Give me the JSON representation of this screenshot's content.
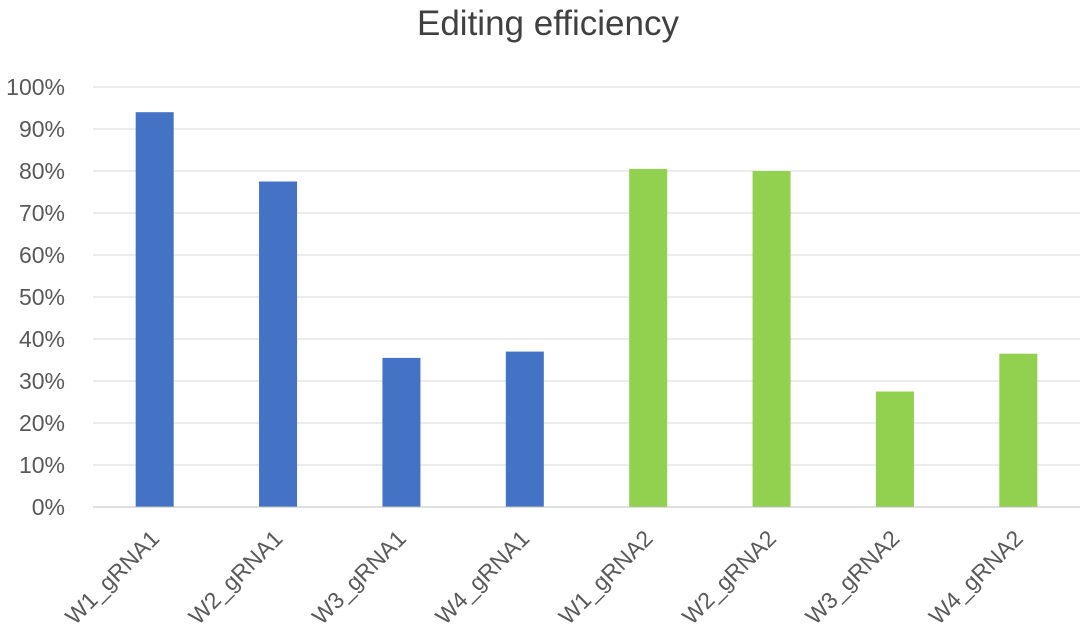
{
  "chart_data": {
    "type": "bar",
    "title": "Editing efficiency",
    "xlabel": "",
    "ylabel": "",
    "categories": [
      "W1_gRNA1",
      "W2_gRNA1",
      "W3_gRNA1",
      "W4_gRNA1",
      "W1_gRNA2",
      "W2_gRNA2",
      "W3_gRNA2",
      "W4_gRNA2"
    ],
    "values": [
      94,
      77.5,
      35.5,
      37,
      80.5,
      80,
      27.5,
      36.5
    ],
    "value_unit": "%",
    "ylim": [
      0,
      100
    ],
    "yticks": [
      "0%",
      "10%",
      "20%",
      "30%",
      "40%",
      "50%",
      "60%",
      "70%",
      "80%",
      "90%",
      "100%"
    ],
    "grid": true,
    "legend": "none",
    "bar_colors": [
      "#4472c4",
      "#4472c4",
      "#4472c4",
      "#4472c4",
      "#92d050",
      "#92d050",
      "#92d050",
      "#92d050"
    ]
  }
}
